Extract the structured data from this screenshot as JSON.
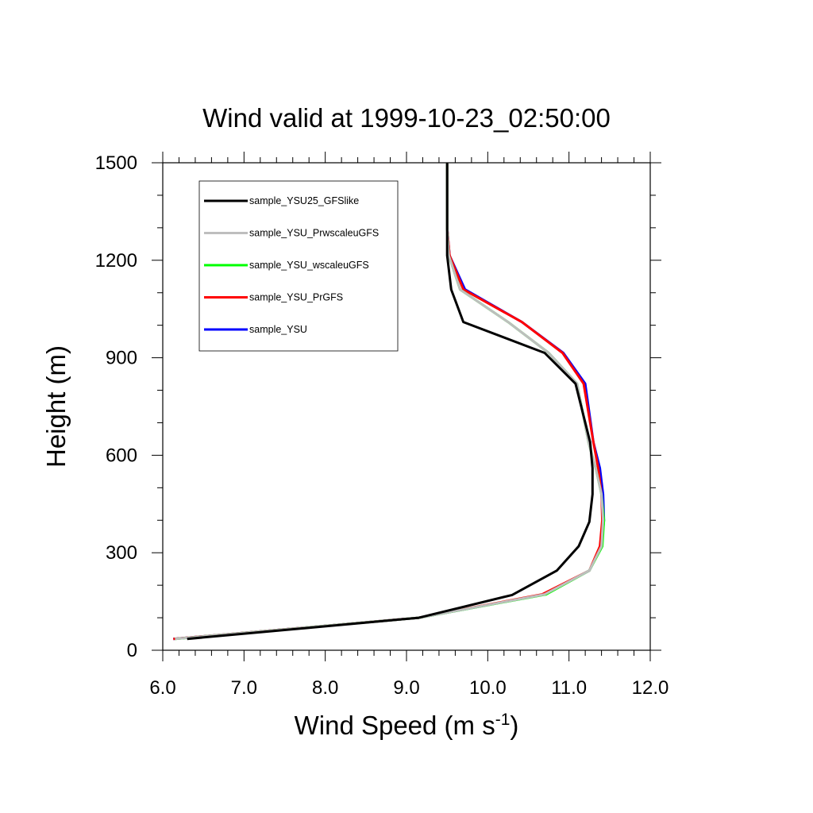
{
  "chart_data": {
    "type": "line",
    "title": "Wind valid at 1999-10-23_02:50:00",
    "xlabel": "Wind Speed (m s",
    "xlabel_superscript": "-1",
    "xlabel_close": ")",
    "ylabel": "Height (m)",
    "xlim": [
      6.0,
      12.0
    ],
    "ylim": [
      0,
      1500
    ],
    "x_ticks": [
      6.0,
      7.0,
      8.0,
      9.0,
      10.0,
      11.0,
      12.0
    ],
    "x_tick_labels": [
      "6.0",
      "7.0",
      "8.0",
      "9.0",
      "10.0",
      "11.0",
      "12.0"
    ],
    "y_ticks": [
      0,
      300,
      600,
      900,
      1200,
      1500
    ],
    "y_tick_labels": [
      "0",
      "300",
      "600",
      "900",
      "1200",
      "1500"
    ],
    "grid": false,
    "legend_position": "top-left",
    "series": [
      {
        "name": "sample_YSU",
        "color": "#0000ff",
        "x": [
          6.13,
          9.15,
          10.7,
          11.25,
          11.4,
          11.43,
          11.42,
          11.38,
          11.3,
          11.2,
          10.93,
          10.42,
          9.72,
          9.53,
          9.5,
          9.5,
          9.5
        ],
        "y": [
          35,
          100,
          172,
          245,
          320,
          400,
          480,
          560,
          640,
          820,
          915,
          1010,
          1110,
          1215,
          1300,
          1400,
          1500
        ]
      },
      {
        "name": "sample_YSU_PrGFS",
        "color": "#ff0000",
        "x": [
          6.13,
          9.15,
          10.67,
          11.25,
          11.38,
          11.41,
          11.4,
          11.36,
          11.3,
          11.18,
          10.92,
          10.42,
          9.7,
          9.53,
          9.5,
          9.5,
          9.5
        ],
        "y": [
          35,
          100,
          172,
          245,
          320,
          400,
          480,
          560,
          640,
          820,
          915,
          1010,
          1110,
          1215,
          1300,
          1400,
          1500
        ]
      },
      {
        "name": "sample_YSU_wscaleuGFS",
        "color": "#00ff00",
        "x": [
          6.15,
          9.15,
          10.72,
          11.25,
          11.41,
          11.43,
          11.4,
          11.33,
          11.24,
          11.1,
          10.75,
          10.25,
          9.66,
          9.52,
          9.5,
          9.5,
          9.5
        ],
        "y": [
          35,
          100,
          172,
          245,
          320,
          400,
          480,
          560,
          640,
          820,
          915,
          1010,
          1110,
          1215,
          1300,
          1400,
          1500
        ]
      },
      {
        "name": "sample_YSU_PrwscaleuGFS",
        "color": "#bebebe",
        "x": [
          6.15,
          9.15,
          10.7,
          11.25,
          11.4,
          11.42,
          11.4,
          11.33,
          11.24,
          11.1,
          10.75,
          10.25,
          9.66,
          9.52,
          9.5,
          9.5,
          9.5
        ],
        "y": [
          35,
          100,
          172,
          245,
          320,
          400,
          480,
          560,
          640,
          820,
          915,
          1010,
          1110,
          1215,
          1300,
          1400,
          1500
        ]
      },
      {
        "name": "sample_YSU25_GFSlike",
        "color": "#000000",
        "x": [
          6.3,
          9.15,
          10.3,
          10.85,
          11.12,
          11.25,
          11.29,
          11.29,
          11.26,
          11.08,
          10.7,
          9.7,
          9.55,
          9.5,
          9.5,
          9.5
        ],
        "y": [
          35,
          100,
          170,
          245,
          320,
          395,
          480,
          560,
          640,
          820,
          915,
          1010,
          1110,
          1215,
          1300,
          1500
        ]
      }
    ],
    "legend_order": [
      "sample_YSU25_GFSlike",
      "sample_YSU_PrwscaleuGFS",
      "sample_YSU_wscaleuGFS",
      "sample_YSU_PrGFS",
      "sample_YSU"
    ]
  }
}
